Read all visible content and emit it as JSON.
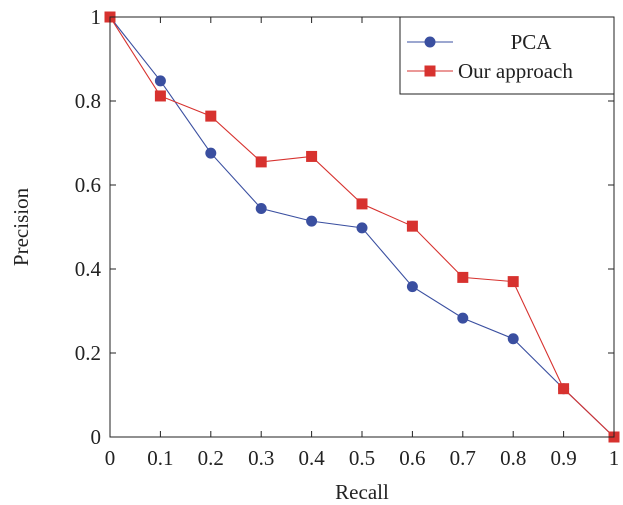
{
  "chart_data": {
    "type": "line",
    "xlabel": "Recall",
    "ylabel": "Precision",
    "xlim": [
      0,
      1
    ],
    "ylim": [
      0,
      1
    ],
    "xticks": [
      0,
      0.1,
      0.2,
      0.3,
      0.4,
      0.5,
      0.6,
      0.7,
      0.8,
      0.9,
      1
    ],
    "xtick_labels": [
      "0",
      "0.1",
      "0.2",
      "0.3",
      "0.4",
      "0.5",
      "0.6",
      "0.7",
      "0.8",
      "0.9",
      "1"
    ],
    "yticks": [
      0,
      0.2,
      0.4,
      0.6,
      0.8,
      1
    ],
    "ytick_labels": [
      "0",
      "0.2",
      "0.4",
      "0.6",
      "0.8",
      "1"
    ],
    "grid": false,
    "legend_position": "top-right",
    "x": [
      0,
      0.1,
      0.2,
      0.3,
      0.4,
      0.5,
      0.6,
      0.7,
      0.8,
      0.9,
      1
    ],
    "series": [
      {
        "name": "PCA",
        "color": "#3a4fa0",
        "marker": "circle",
        "values": [
          1.0,
          0.848,
          0.676,
          0.544,
          0.514,
          0.498,
          0.358,
          0.283,
          0.234,
          0.115,
          0.0
        ]
      },
      {
        "name": "Our approach",
        "color": "#d7322f",
        "marker": "square",
        "values": [
          1.0,
          0.812,
          0.764,
          0.655,
          0.668,
          0.555,
          0.502,
          0.38,
          0.37,
          0.115,
          0.0
        ]
      }
    ]
  }
}
